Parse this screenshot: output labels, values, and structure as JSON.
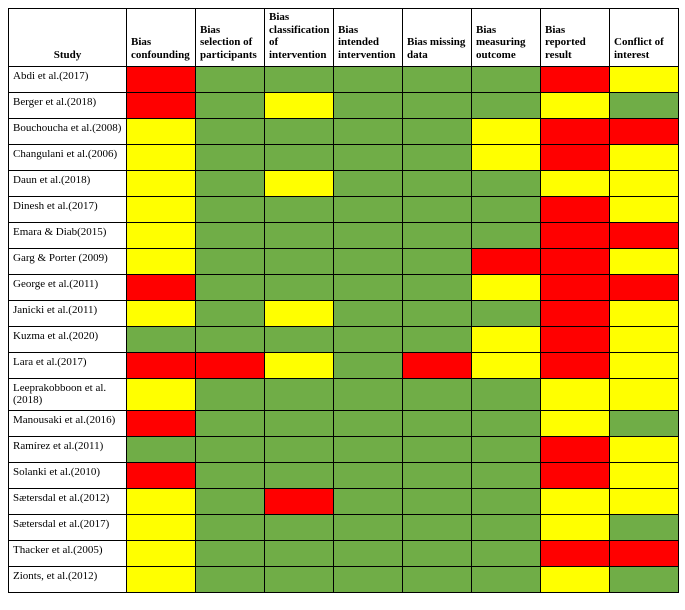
{
  "colors": {
    "low": "#70ad47",
    "medium": "#ffff00",
    "high": "#ff0000"
  },
  "columns": [
    "Study",
    "Bias confounding",
    "Bias selection of participants",
    "Bias classification of intervention",
    "Bias intended intervention",
    "Bias missing data",
    "Bias measuring outcome",
    "Bias reported result",
    "Conflict of interest"
  ],
  "rows": [
    {
      "study": "Abdi et al.(2017)",
      "risk": [
        "high",
        "low",
        "low",
        "low",
        "low",
        "low",
        "high",
        "medium"
      ]
    },
    {
      "study": "Berger et al.(2018)",
      "risk": [
        "high",
        "low",
        "medium",
        "low",
        "low",
        "low",
        "medium",
        "low"
      ]
    },
    {
      "study": "Bouchoucha et al.(2008)",
      "risk": [
        "medium",
        "low",
        "low",
        "low",
        "low",
        "medium",
        "high",
        "high"
      ]
    },
    {
      "study": "Changulani et al.(2006)",
      "risk": [
        "medium",
        "low",
        "low",
        "low",
        "low",
        "medium",
        "high",
        "medium"
      ]
    },
    {
      "study": "Daun et al.(2018)",
      "risk": [
        "medium",
        "low",
        "medium",
        "low",
        "low",
        "low",
        "medium",
        "medium"
      ]
    },
    {
      "study": "Dinesh et al.(2017)",
      "risk": [
        "medium",
        "low",
        "low",
        "low",
        "low",
        "low",
        "high",
        "medium"
      ]
    },
    {
      "study": "Emara & Diab(2015)",
      "risk": [
        "medium",
        "low",
        "low",
        "low",
        "low",
        "low",
        "high",
        "high"
      ]
    },
    {
      "study": "Garg & Porter (2009)",
      "risk": [
        "medium",
        "low",
        "low",
        "low",
        "low",
        "high",
        "high",
        "medium"
      ]
    },
    {
      "study": "George et al.(2011)",
      "risk": [
        "high",
        "low",
        "low",
        "low",
        "low",
        "medium",
        "high",
        "high"
      ]
    },
    {
      "study": "Janicki et al.(2011)",
      "risk": [
        "medium",
        "low",
        "medium",
        "low",
        "low",
        "low",
        "high",
        "medium"
      ]
    },
    {
      "study": "Kuzma et al.(2020)",
      "risk": [
        "low",
        "low",
        "low",
        "low",
        "low",
        "medium",
        "high",
        "medium"
      ]
    },
    {
      "study": "Lara et al.(2017)",
      "risk": [
        "high",
        "high",
        "medium",
        "low",
        "high",
        "medium",
        "high",
        "medium"
      ]
    },
    {
      "study": "Leeprakobboon et al.(2018)",
      "risk": [
        "medium",
        "low",
        "low",
        "low",
        "low",
        "low",
        "medium",
        "medium"
      ]
    },
    {
      "study": "Manousaki et al.(2016)",
      "risk": [
        "high",
        "low",
        "low",
        "low",
        "low",
        "low",
        "medium",
        "low"
      ]
    },
    {
      "study": "Ramírez et al.(2011)",
      "risk": [
        "low",
        "low",
        "low",
        "low",
        "low",
        "low",
        "high",
        "medium"
      ]
    },
    {
      "study": "Solanki et al.(2010)",
      "risk": [
        "high",
        "low",
        "low",
        "low",
        "low",
        "low",
        "high",
        "medium"
      ]
    },
    {
      "study": "Sætersdal et al.(2012)",
      "risk": [
        "medium",
        "low",
        "high",
        "low",
        "low",
        "low",
        "medium",
        "medium"
      ]
    },
    {
      "study": "Sætersdal et al.(2017)",
      "risk": [
        "medium",
        "low",
        "low",
        "low",
        "low",
        "low",
        "medium",
        "low"
      ]
    },
    {
      "study": "Thacker et al.(2005)",
      "risk": [
        "medium",
        "low",
        "low",
        "low",
        "low",
        "low",
        "high",
        "high"
      ]
    },
    {
      "study": "Zionts, et al.(2012)",
      "risk": [
        "medium",
        "low",
        "low",
        "low",
        "low",
        "low",
        "medium",
        "low"
      ]
    }
  ]
}
